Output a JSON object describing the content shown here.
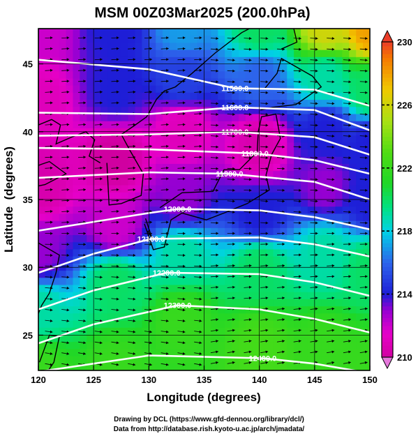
{
  "chart_data": {
    "type": "heatmap",
    "title": "MSM 00Z03Mar2025 (200.0hPa)",
    "xlabel": "Longitude (degrees)",
    "ylabel": "Latitude  (degrees)",
    "xlim": [
      120,
      150
    ],
    "ylim": [
      22.4,
      47.6
    ],
    "xticks": [
      "120",
      "125",
      "130",
      "135",
      "140",
      "145",
      "150"
    ],
    "xtick_values": [
      120,
      125,
      130,
      135,
      140,
      145,
      150
    ],
    "yticks": [
      "25",
      "30",
      "35",
      "40",
      "45"
    ],
    "ytick_values": [
      25,
      30,
      35,
      40,
      45
    ],
    "colorbar": {
      "min": 210,
      "max": 230,
      "ticks": [
        "210",
        "214",
        "218",
        "222",
        "226",
        "230"
      ],
      "tick_values": [
        210,
        214,
        218,
        222,
        226,
        230
      ]
    },
    "contours": [
      {
        "label": "11500.0",
        "value": 11500,
        "label_lon": 137.8,
        "lat_at_lon": [
          [
            120,
            45.3
          ],
          [
            130,
            44.6
          ],
          [
            137.8,
            43.2
          ],
          [
            145,
            43.1
          ],
          [
            150,
            41.9
          ]
        ]
      },
      {
        "label": "11600.0",
        "value": 11600,
        "label_lon": 137.8,
        "lat_at_lon": [
          [
            120,
            41.4
          ],
          [
            130,
            41.3
          ],
          [
            137.8,
            41.8
          ],
          [
            145,
            41.6
          ],
          [
            150,
            40.1
          ]
        ]
      },
      {
        "label": "11700.0",
        "value": 11700,
        "label_lon": 137.8,
        "lat_at_lon": [
          [
            120,
            39.7
          ],
          [
            130,
            39.8
          ],
          [
            137.8,
            40.0
          ],
          [
            145,
            39.6
          ],
          [
            150,
            38.3
          ]
        ]
      },
      {
        "label": "11800.0",
        "value": 11800,
        "label_lon": 139.6,
        "lat_at_lon": [
          [
            120,
            38.8
          ],
          [
            130,
            38.7
          ],
          [
            139.6,
            38.4
          ],
          [
            145,
            37.9
          ],
          [
            150,
            36.9
          ]
        ]
      },
      {
        "label": "11900.0",
        "value": 11900,
        "label_lon": 137.3,
        "lat_at_lon": [
          [
            120,
            36.6
          ],
          [
            130,
            37.0
          ],
          [
            137.3,
            36.9
          ],
          [
            145,
            36.3
          ],
          [
            150,
            35.0
          ]
        ]
      },
      {
        "label": "12000.0",
        "value": 12000,
        "label_lon": 132.6,
        "lat_at_lon": [
          [
            120,
            32.7
          ],
          [
            130,
            34.0
          ],
          [
            132.6,
            34.3
          ],
          [
            140,
            34.2
          ],
          [
            145,
            33.7
          ],
          [
            150,
            32.8
          ]
        ]
      },
      {
        "label": "12100.0",
        "value": 12100,
        "label_lon": 130.2,
        "lat_at_lon": [
          [
            120,
            29.6
          ],
          [
            125,
            31.0
          ],
          [
            130.2,
            32.1
          ],
          [
            140,
            32.2
          ],
          [
            145,
            31.7
          ],
          [
            150,
            30.8
          ]
        ]
      },
      {
        "label": "12200.0",
        "value": 12200,
        "label_lon": 131.6,
        "lat_at_lon": [
          [
            120,
            26.9
          ],
          [
            125,
            28.3
          ],
          [
            131.6,
            29.6
          ],
          [
            140,
            29.5
          ],
          [
            145,
            28.9
          ],
          [
            150,
            27.9
          ]
        ]
      },
      {
        "label": "12300.0",
        "value": 12300,
        "label_lon": 132.6,
        "lat_at_lon": [
          [
            120,
            24.4
          ],
          [
            125,
            25.8
          ],
          [
            132.6,
            27.2
          ],
          [
            140,
            26.9
          ],
          [
            145,
            26.2
          ],
          [
            150,
            25.2
          ]
        ]
      },
      {
        "label": "12400.0",
        "value": 12400,
        "label_lon": 140.3,
        "lat_at_lon": [
          [
            120,
            22.3
          ],
          [
            130,
            23.5
          ],
          [
            140.3,
            23.3
          ],
          [
            145,
            22.9
          ],
          [
            150,
            22.2
          ]
        ]
      }
    ],
    "temperature_field": [
      {
        "lon": 120,
        "lat": 47.6,
        "value": 212
      },
      {
        "lon": 120,
        "lat": 42,
        "value": 211
      },
      {
        "lon": 120,
        "lat": 36,
        "value": 210.5
      },
      {
        "lon": 120,
        "lat": 31,
        "value": 213
      },
      {
        "lon": 120,
        "lat": 27,
        "value": 219
      },
      {
        "lon": 120,
        "lat": 22.4,
        "value": 222
      },
      {
        "lon": 127,
        "lat": 47.6,
        "value": 214
      },
      {
        "lon": 127,
        "lat": 43,
        "value": 214
      },
      {
        "lon": 127,
        "lat": 38,
        "value": 210
      },
      {
        "lon": 127,
        "lat": 33,
        "value": 212
      },
      {
        "lon": 127,
        "lat": 29,
        "value": 220
      },
      {
        "lon": 127,
        "lat": 22.4,
        "value": 222
      },
      {
        "lon": 133,
        "lat": 47.6,
        "value": 217
      },
      {
        "lon": 133,
        "lat": 44,
        "value": 215
      },
      {
        "lon": 133,
        "lat": 40,
        "value": 211
      },
      {
        "lon": 133,
        "lat": 35,
        "value": 213
      },
      {
        "lon": 133,
        "lat": 31,
        "value": 219
      },
      {
        "lon": 133,
        "lat": 26,
        "value": 222
      },
      {
        "lon": 140,
        "lat": 47.6,
        "value": 220
      },
      {
        "lon": 140,
        "lat": 44,
        "value": 216
      },
      {
        "lon": 140,
        "lat": 39,
        "value": 210.5
      },
      {
        "lon": 140,
        "lat": 34,
        "value": 214
      },
      {
        "lon": 140,
        "lat": 30,
        "value": 220
      },
      {
        "lon": 140,
        "lat": 24,
        "value": 222.5
      },
      {
        "lon": 146,
        "lat": 47.6,
        "value": 226
      },
      {
        "lon": 146,
        "lat": 44,
        "value": 219
      },
      {
        "lon": 146,
        "lat": 40,
        "value": 214
      },
      {
        "lon": 146,
        "lat": 36,
        "value": 213
      },
      {
        "lon": 146,
        "lat": 31,
        "value": 219
      },
      {
        "lon": 146,
        "lat": 24,
        "value": 222
      },
      {
        "lon": 150,
        "lat": 47.6,
        "value": 228
      },
      {
        "lon": 150,
        "lat": 43,
        "value": 220
      },
      {
        "lon": 150,
        "lat": 39,
        "value": 214
      },
      {
        "lon": 150,
        "lat": 35,
        "value": 214
      },
      {
        "lon": 150,
        "lat": 30,
        "value": 220
      },
      {
        "lon": 150,
        "lat": 22.4,
        "value": 222
      }
    ],
    "coastlines": [
      {
        "name": "honshu-kyushu",
        "points": [
          [
            129.6,
            33.2
          ],
          [
            130.4,
            31.3
          ],
          [
            131.4,
            31.5
          ],
          [
            132.0,
            33.5
          ],
          [
            133.0,
            34.0
          ],
          [
            135.2,
            33.5
          ],
          [
            136.8,
            34.0
          ],
          [
            138.9,
            34.7
          ],
          [
            140.9,
            35.7
          ],
          [
            140.6,
            36.8
          ],
          [
            141.1,
            38.3
          ],
          [
            141.9,
            39.5
          ],
          [
            141.5,
            41.3
          ],
          [
            140.2,
            41.1
          ],
          [
            139.9,
            40.0
          ],
          [
            139.8,
            38.5
          ],
          [
            138.2,
            37.2
          ],
          [
            136.8,
            37.2
          ],
          [
            135.8,
            35.6
          ],
          [
            133.0,
            35.5
          ],
          [
            131.0,
            34.4
          ]
        ]
      },
      {
        "name": "hokkaido",
        "points": [
          [
            140.1,
            41.6
          ],
          [
            141.2,
            41.8
          ],
          [
            143.3,
            42.0
          ],
          [
            145.6,
            43.3
          ],
          [
            144.8,
            44.1
          ],
          [
            142.0,
            45.4
          ],
          [
            141.6,
            44.3
          ],
          [
            140.5,
            43.2
          ]
        ]
      },
      {
        "name": "sakhalin",
        "points": [
          [
            142.0,
            46.1
          ],
          [
            143.4,
            46.6
          ],
          [
            143.0,
            48.0
          ],
          [
            142.1,
            47.6
          ]
        ]
      },
      {
        "name": "korea",
        "points": [
          [
            126.2,
            37.7
          ],
          [
            126.4,
            34.6
          ],
          [
            127.5,
            34.7
          ],
          [
            129.3,
            35.3
          ],
          [
            129.5,
            36.9
          ],
          [
            128.3,
            38.6
          ],
          [
            127.5,
            39.8
          ],
          [
            128.6,
            40.4
          ],
          [
            129.8,
            41.1
          ],
          [
            130.7,
            42.4
          ],
          [
            131.4,
            43.0
          ],
          [
            132.4,
            43.3
          ],
          [
            133.9,
            44.3
          ],
          [
            136.0,
            45.8
          ],
          [
            138.4,
            47.3
          ],
          [
            139.1,
            47.6
          ],
          [
            120.0,
            47.6
          ],
          [
            120.0,
            40.5
          ],
          [
            121.2,
            40.9
          ],
          [
            122.0,
            40.5
          ],
          [
            121.6,
            39.1
          ],
          [
            123.0,
            39.6
          ],
          [
            124.3,
            40.0
          ],
          [
            125.1,
            39.4
          ],
          [
            124.6,
            38.2
          ],
          [
            125.6,
            37.7
          ]
        ]
      },
      {
        "name": "china-east-coast",
        "points": [
          [
            120.0,
            36.0
          ],
          [
            120.6,
            36.1
          ],
          [
            122.5,
            36.9
          ],
          [
            121.0,
            37.8
          ],
          [
            120.3,
            37.6
          ],
          [
            119.0,
            37.2
          ]
        ]
      },
      {
        "name": "east-china-coast-south",
        "points": [
          [
            120.0,
            31.8
          ],
          [
            121.9,
            30.9
          ],
          [
            121.6,
            29.6
          ],
          [
            121.0,
            28.1
          ],
          [
            120.3,
            27.2
          ],
          [
            120.0,
            26.6
          ]
        ]
      },
      {
        "name": "taiwan",
        "points": [
          [
            120.1,
            23.0
          ],
          [
            121.0,
            25.0
          ],
          [
            121.9,
            24.9
          ],
          [
            121.4,
            23.0
          ],
          [
            120.9,
            22.4
          ],
          [
            120.2,
            22.4
          ]
        ]
      },
      {
        "name": "kyushu-west",
        "points": [
          [
            129.7,
            33.6
          ],
          [
            130.3,
            32.1
          ],
          [
            129.9,
            32.7
          ]
        ]
      }
    ]
  },
  "footer": {
    "line1": "Drawing by DCL (https://www.gfd-dennou.org/library/dcl/)",
    "line2": "Data from http://database.rish.kyoto-u.ac.jp/arch/jmadata/"
  }
}
